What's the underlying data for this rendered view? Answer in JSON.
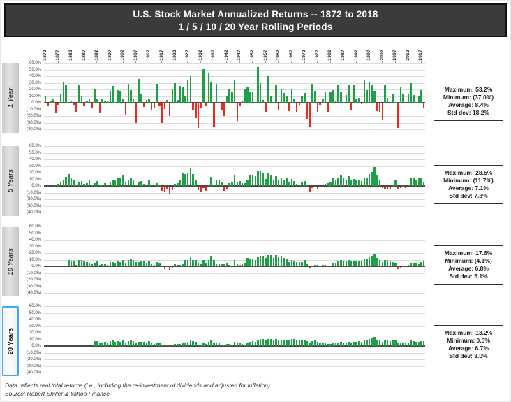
{
  "header": {
    "title_line1": "U.S. Stock Market Annualized Returns  -- 1872 to 2018",
    "title_line2": "1 / 5 / 10 / 20 Year Rolling Periods"
  },
  "footer": {
    "line1": "Data reflects real total returns (i.e., including the re-investment of dividends and adjusted for inflation)",
    "line2": "Source: Robert Shiller & Yahoo Finance"
  },
  "colors": {
    "positive_bar": "#1fa046",
    "negative_bar": "#ee2a1e",
    "title_bg": "#3b3b3b",
    "grid": "#dcdcdc",
    "zero_line": "#4a4a4a",
    "label_box_bg": "#d5d5d5",
    "highlight_border": "#41a9f1"
  },
  "axis": {
    "year_tick_labels": [
      "1872",
      "1877",
      "1882",
      "1887",
      "1892",
      "1897",
      "1902",
      "1907",
      "1912",
      "1917",
      "1922",
      "1927",
      "1932",
      "1937",
      "1942",
      "1947",
      "1952",
      "1957",
      "1962",
      "1967",
      "1972",
      "1977",
      "1982",
      "1987",
      "1992",
      "1997",
      "2002",
      "2007",
      "2012",
      "2017"
    ],
    "y_tick_labels": [
      "60.0%",
      "50.0%",
      "40.0%",
      "30.0%",
      "20.0%",
      "10.0%",
      "0.0%",
      "(10.0%)",
      "(20.0%)",
      "(30.0%)",
      "(40.0%)"
    ],
    "y_max": 60,
    "y_min": -40,
    "x_start_year": 1872,
    "x_end_year": 2018
  },
  "chart_data": [
    {
      "type": "bar",
      "label": "1 Year",
      "highlighted": false,
      "start_year": 1872,
      "values": [
        11,
        -3,
        3,
        5,
        -14,
        -2,
        13,
        31,
        27,
        0,
        2,
        -2,
        -13,
        27,
        11,
        -4,
        3,
        6,
        -7,
        21,
        5,
        -14,
        5,
        3,
        2,
        18,
        25,
        1,
        19,
        18,
        6,
        -17,
        28,
        19,
        5,
        -29,
        36,
        13,
        -5,
        4,
        5,
        -9,
        -6,
        28,
        -4,
        -29,
        -8,
        4,
        -19,
        20,
        30,
        4,
        25,
        24,
        10,
        35,
        41,
        -9,
        -22,
        -37,
        -6,
        52,
        -3,
        44,
        31,
        -36,
        28,
        1,
        -10,
        -19,
        11,
        21,
        16,
        34,
        -26,
        -3,
        3,
        20,
        24,
        17,
        17,
        0,
        53.2,
        30,
        4,
        -13,
        40,
        10,
        0,
        26,
        -10,
        21,
        15,
        11,
        -12,
        21,
        6,
        -13,
        -2,
        11,
        15,
        -23,
        -35,
        28,
        18,
        -13,
        -2,
        5,
        17,
        -13,
        16,
        19,
        2,
        27,
        17,
        1,
        12,
        26,
        -9,
        26,
        5,
        7,
        -1,
        34,
        19,
        31,
        27,
        18,
        -12,
        -13,
        -24,
        26,
        7,
        1,
        13,
        1,
        -37,
        24,
        13,
        0,
        14,
        29,
        12,
        0,
        10,
        19,
        -6
      ],
      "stats_lines": [
        "Maximum: 53.2%",
        "Minimum: (37.0%)",
        "Average: 8.4%",
        "Std dev: 18.2%"
      ]
    },
    {
      "type": "bar",
      "label": "5 Years",
      "highlighted": false,
      "start_year": 1876,
      "values": [
        0,
        3,
        5,
        9,
        14,
        18,
        13,
        10,
        2,
        5,
        7,
        3,
        4,
        8,
        2,
        4,
        7,
        0,
        1,
        4,
        0,
        5,
        9,
        10,
        13,
        12,
        16,
        5,
        9,
        13,
        8,
        0,
        6,
        7,
        3,
        1,
        9,
        1,
        0,
        4,
        2,
        -6,
        -8,
        -4,
        -11.7,
        -5,
        3,
        4,
        8,
        19,
        18,
        19,
        26,
        18,
        9,
        -5,
        -8,
        -2,
        -6,
        2,
        14,
        1,
        8,
        10,
        6,
        -6,
        -3,
        4,
        6,
        16,
        6,
        7,
        4,
        4,
        10,
        17,
        16,
        15,
        23,
        23,
        20,
        11,
        20,
        16,
        10,
        15,
        8,
        12,
        10,
        12,
        5,
        11,
        7,
        3,
        2,
        6,
        7,
        0,
        -7,
        -2,
        -1,
        -3,
        -1,
        -1,
        3,
        4,
        5,
        12,
        10,
        12,
        17,
        12,
        10,
        15,
        9,
        11,
        10,
        10,
        7,
        13,
        13,
        18,
        21,
        28.5,
        17,
        9,
        -2,
        -3,
        -4,
        -3,
        2,
        9,
        -4,
        -2,
        0,
        -2,
        0,
        13,
        13,
        10,
        12,
        13,
        6
      ],
      "stats_lines": [
        "Maximum: 28.5%",
        "Minimum: (11.7%)",
        "Average: 7.1%",
        "Std dev: 7.8%"
      ]
    },
    {
      "type": "bar",
      "label": "10 Years",
      "highlighted": false,
      "start_year": 1881,
      "values": [
        9,
        8,
        7,
        2,
        9,
        10,
        8,
        6,
        5,
        3,
        5,
        7,
        2,
        3,
        4,
        2,
        6,
        6,
        5,
        8,
        6,
        10,
        5,
        9,
        11,
        10,
        6,
        6,
        7,
        8,
        5,
        8,
        3,
        2,
        6,
        5,
        1,
        -3,
        0,
        -4.1,
        -2,
        3,
        2,
        2,
        3,
        9,
        10,
        14,
        10,
        9,
        5,
        4,
        10,
        5,
        10,
        16,
        9,
        3,
        4,
        4,
        3,
        5,
        2,
        1,
        9,
        4,
        2,
        4,
        5,
        13,
        11,
        12,
        9,
        14,
        16,
        16,
        13,
        16.5,
        17,
        13,
        16.5,
        14,
        16,
        13,
        11,
        6,
        9,
        7,
        6,
        6,
        6,
        9,
        3,
        -2,
        0,
        2,
        2,
        1,
        2,
        2,
        1,
        1,
        5,
        5,
        7,
        10,
        7,
        8,
        9,
        7,
        8,
        7,
        8,
        8,
        11,
        11,
        14,
        16,
        17.6,
        13,
        10,
        6,
        9,
        9,
        7,
        6,
        5,
        -3,
        -2,
        0,
        0,
        2,
        5,
        5,
        5,
        4,
        6,
        8
      ],
      "stats_lines": [
        "Maximum: 17.6%",
        "Minimum: (4.1%)",
        "Average: 6.8%",
        "Std dev: 5.1%"
      ]
    },
    {
      "type": "bar",
      "label": "20 Years",
      "highlighted": true,
      "start_year": 1891,
      "values": [
        7,
        7,
        5,
        5,
        6,
        4,
        7,
        8,
        6,
        7,
        6,
        8,
        5,
        7,
        8,
        7,
        4,
        6,
        6,
        6,
        5,
        7,
        4,
        3,
        5,
        4,
        2,
        1,
        2,
        1,
        1,
        3,
        3,
        3,
        4,
        5,
        6,
        8,
        7,
        6,
        2,
        2,
        5,
        3,
        6,
        9,
        5,
        5,
        4,
        2,
        1,
        3,
        3,
        2,
        6,
        5,
        4,
        3,
        0.5,
        5,
        6,
        7,
        6,
        9,
        11,
        11,
        8,
        11,
        11,
        9,
        11,
        9,
        10,
        10,
        10,
        10,
        11,
        11,
        10,
        9,
        9,
        10,
        7,
        5,
        7,
        8,
        6,
        4,
        4,
        4,
        3,
        3,
        5,
        4,
        5,
        6,
        5,
        5,
        6,
        5,
        6,
        6,
        7,
        6,
        9,
        9,
        11,
        12,
        13.2,
        10,
        9,
        6,
        8,
        8,
        7,
        8,
        8,
        4,
        4,
        5,
        4,
        5,
        8,
        7,
        6,
        6,
        7,
        7
      ],
      "stats_lines": [
        "Maximum: 13.2%",
        "Minimum: 0.5%",
        "Average: 6.7%",
        "Std dev: 3.0%"
      ]
    }
  ]
}
